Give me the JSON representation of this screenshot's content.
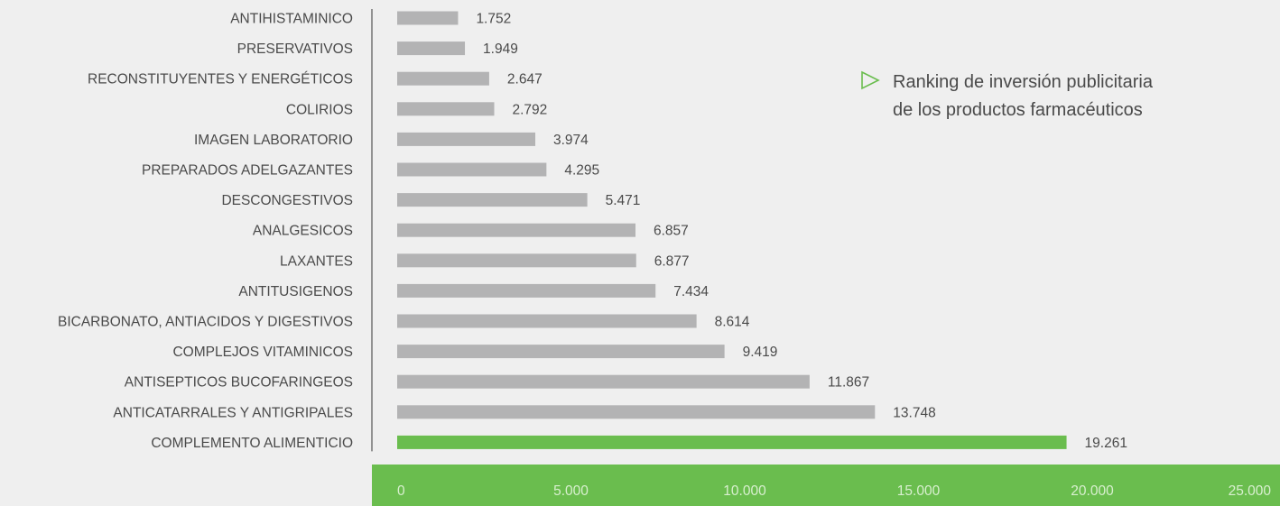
{
  "chart_data": {
    "type": "bar",
    "orientation": "horizontal",
    "categories": [
      "ANTIHISTAMINICO",
      "PRESERVATIVOS",
      "RECONSTITUYENTES Y ENERGÉTICOS",
      "COLIRIOS",
      "IMAGEN LABORATORIO",
      "PREPARADOS ADELGAZANTES",
      "DESCONGESTIVOS",
      "ANALGESICOS",
      "LAXANTES",
      "ANTITUSIGENOS",
      "BICARBONATO, ANTIACIDOS Y DIGESTIVOS",
      "COMPLEJOS VITAMINICOS",
      "ANTISEPTICOS BUCOFARINGEOS",
      "ANTICATARRALES Y ANTIGRIPALES",
      "COMPLEMENTO ALIMENTICIO"
    ],
    "values": [
      1752,
      1949,
      2647,
      2792,
      3974,
      4295,
      5471,
      6857,
      6877,
      7434,
      8614,
      9419,
      11867,
      13748,
      19261
    ],
    "value_labels": [
      "1.752",
      "1.949",
      "2.647",
      "2.792",
      "3.974",
      "4.295",
      "5.471",
      "6.857",
      "6.877",
      "7.434",
      "8.614",
      "9.419",
      "11.867",
      "13.748",
      "19.261"
    ],
    "highlight_index": 14,
    "xlim": [
      0,
      25000
    ],
    "x_ticks": [
      0,
      5000,
      10000,
      15000,
      20000,
      25000
    ],
    "x_tick_labels": [
      "0",
      "5.000",
      "10.000",
      "15.000",
      "20.000",
      "25.000"
    ],
    "title": "",
    "xlabel": "",
    "ylabel": "",
    "grid": false,
    "colors": {
      "bar": "#b3b3b4",
      "highlight_bar": "#6abd4e",
      "axis_band": "#6abd4e",
      "tick_text": "#d8efcf",
      "label_text": "#4a4a4a",
      "axis_line": "#555555",
      "background": "#efefef"
    }
  },
  "annotation": {
    "text": "Ranking de inversión publicitaria de los productos farmacéuticos",
    "icon": "triangle-outline-right-icon",
    "icon_color": "#6abd4e"
  }
}
